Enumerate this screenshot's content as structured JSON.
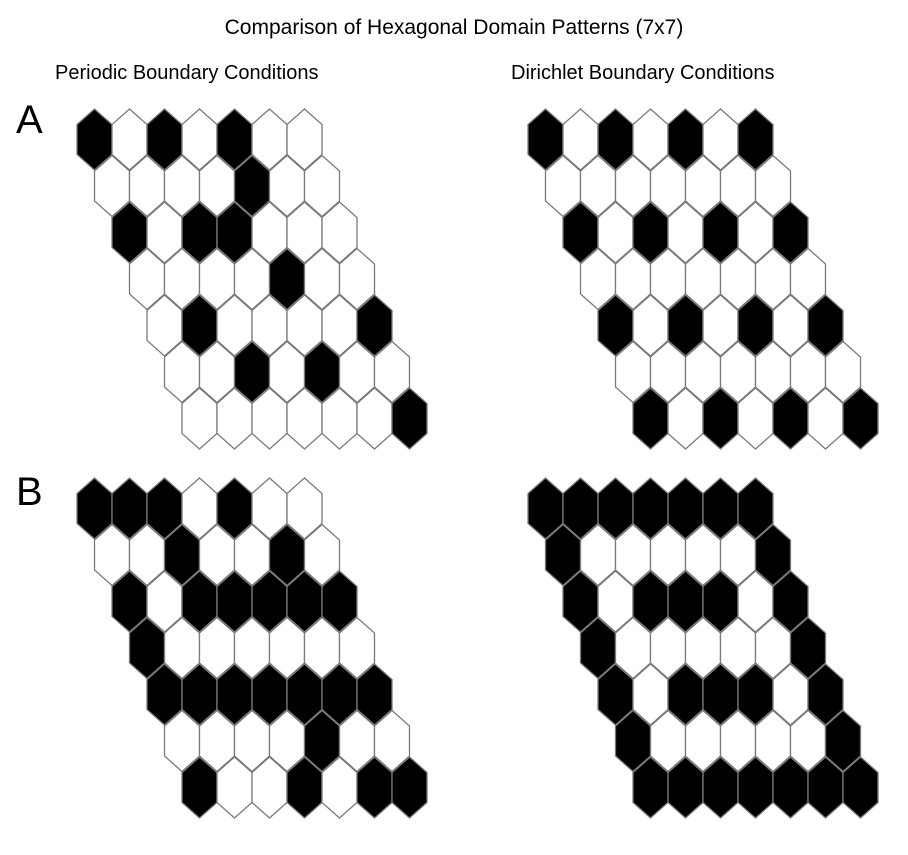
{
  "title": "Comparison of Hexagonal Domain Patterns (7x7)",
  "columns": [
    "Periodic Boundary Conditions",
    "Dirichlet Boundary Conditions"
  ],
  "rows": [
    {
      "label": "A",
      "panels": [
        [
          "1010100",
          "0000100",
          "1011000",
          "0000100",
          "0100001",
          "0010100",
          "0000001"
        ],
        [
          "1010101",
          "0000000",
          "1010101",
          "0000000",
          "1010101",
          "0000000",
          "1010101"
        ]
      ]
    },
    {
      "label": "B",
      "panels": [
        [
          "1110100",
          "0010010",
          "1011111",
          "1000000",
          "1111111",
          "0000100",
          "1001011"
        ],
        [
          "1111111",
          "1000001",
          "1011101",
          "1000001",
          "1011101",
          "1000001",
          "1111111"
        ]
      ]
    }
  ],
  "colors": {
    "filled": "#000000",
    "empty": "#ffffff",
    "outline": "#7a7a7a"
  }
}
